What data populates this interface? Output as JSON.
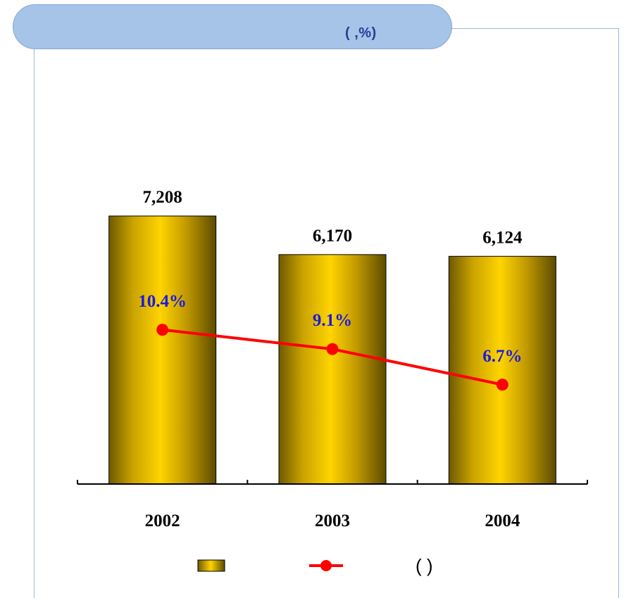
{
  "title": "( ,%)",
  "chart_data": {
    "type": "bar",
    "categories": [
      "2002",
      "2003",
      "2004"
    ],
    "series": [
      {
        "values": [
          7208,
          6170,
          6124
        ],
        "value_labels": [
          "7,208",
          "6,170",
          "6,124"
        ],
        "kind": "bar",
        "color": "#d4a800"
      },
      {
        "values": [
          10.4,
          9.1,
          6.7
        ],
        "value_labels": [
          "10.4%",
          "9.1%",
          "6.7%"
        ],
        "kind": "line",
        "color": "#ff0000"
      }
    ],
    "bar_ylim": [
      0,
      9000
    ],
    "line_ylim": [
      0,
      18
    ],
    "legend": {
      "position": "bottom",
      "entries": [
        "",
        "( )"
      ]
    },
    "grid": false
  }
}
